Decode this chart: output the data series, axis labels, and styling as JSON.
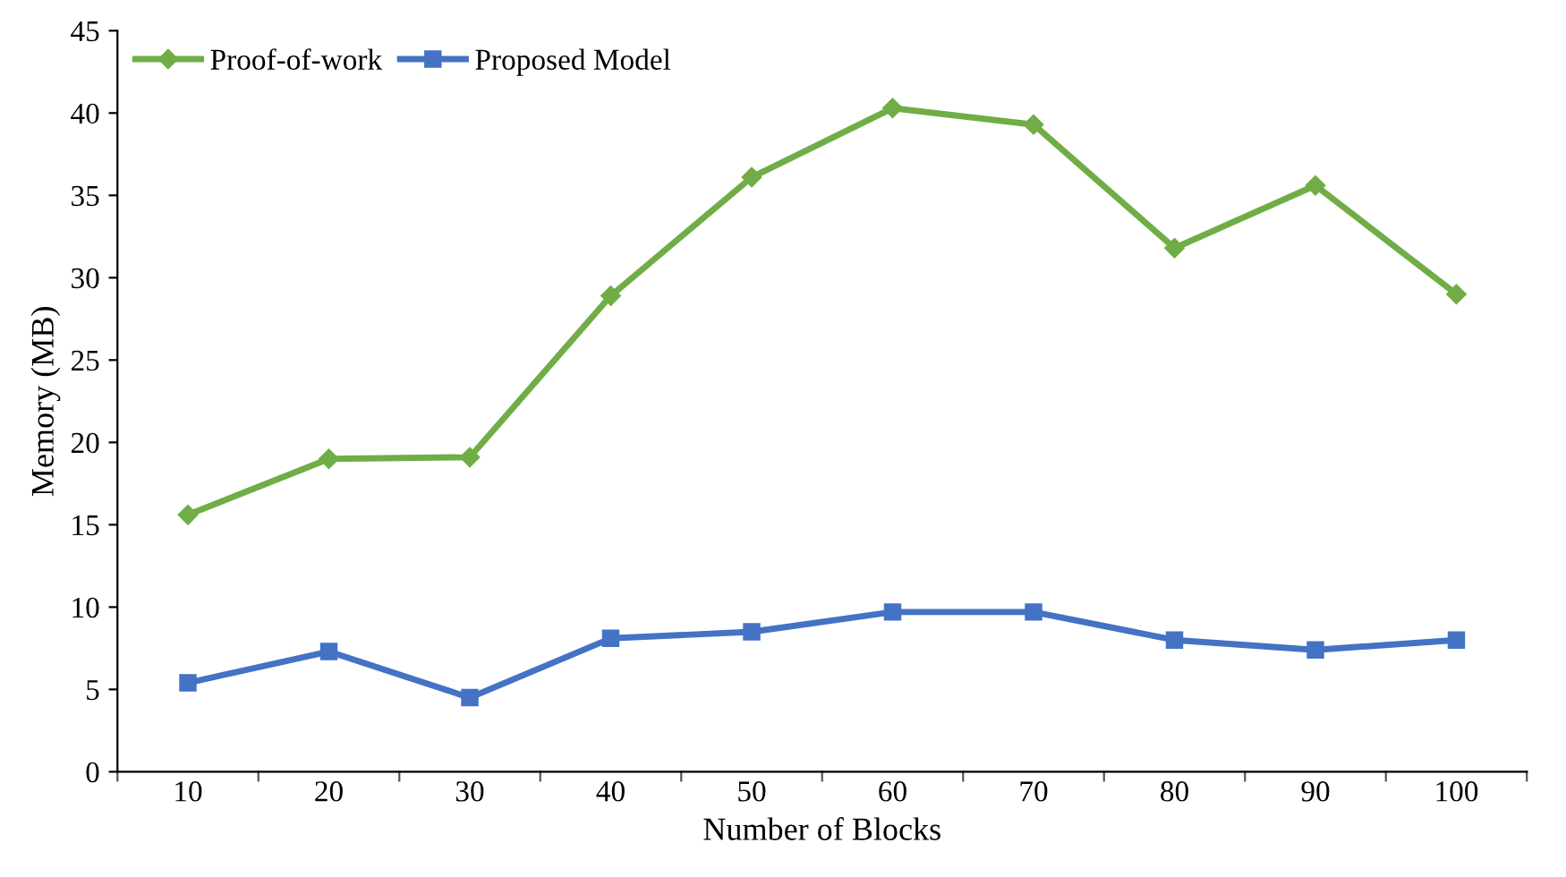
{
  "chart_data": {
    "type": "line",
    "xlabel": "Number of Blocks",
    "ylabel": "Memory (MB)",
    "categories": [
      "10",
      "20",
      "30",
      "40",
      "50",
      "60",
      "70",
      "80",
      "90",
      "100"
    ],
    "series": [
      {
        "name": "Proof-of-work",
        "color": "#70ad47",
        "marker": "diamond",
        "values": [
          15.6,
          19.0,
          19.1,
          28.9,
          36.1,
          40.3,
          39.3,
          31.8,
          35.6,
          29.0
        ]
      },
      {
        "name": "Proposed Model",
        "color": "#4472c4",
        "marker": "square",
        "values": [
          5.4,
          7.3,
          4.5,
          8.1,
          8.5,
          9.7,
          9.7,
          8.0,
          7.4,
          8.0
        ]
      }
    ],
    "ylim": [
      0,
      45
    ],
    "yticks": [
      0,
      5,
      10,
      15,
      20,
      25,
      30,
      35,
      40,
      45
    ],
    "grid": false,
    "legend": "top left",
    "line_style": "solid"
  }
}
